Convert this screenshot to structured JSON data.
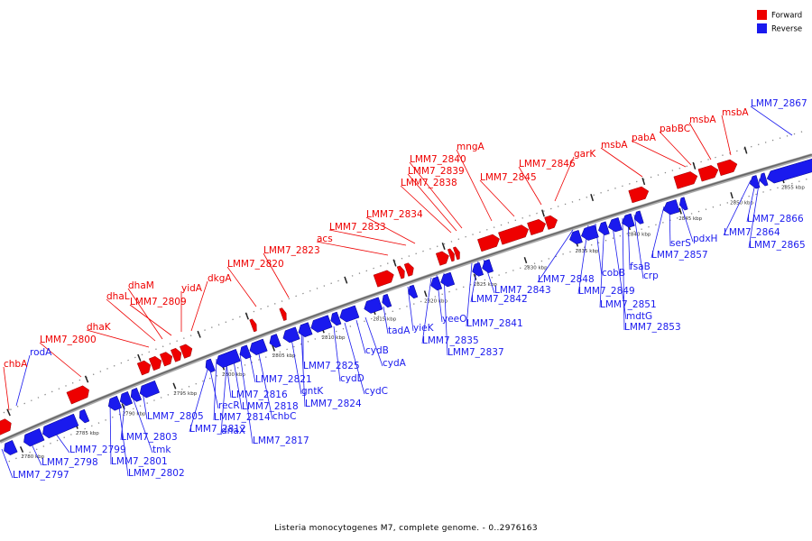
{
  "caption": "Listeria monocytogenes M7, complete genome. - 0..2976163",
  "legend": [
    {
      "label": "Forward",
      "color": "#ee0000"
    },
    {
      "label": "Reverse",
      "color": "#1a1aee"
    }
  ],
  "colors": {
    "forward": "#ee0000",
    "reverse": "#1a1aee",
    "backbone": "#666666"
  },
  "scale_ticks": [
    "2780 kbp",
    "2785 kbp",
    "2790 kbp",
    "2795 kbp",
    "2800 kbp",
    "2805 kbp",
    "2810 kbp",
    "2815 kbp",
    "2820 kbp",
    "2825 kbp",
    "2830 kbp",
    "2835 kbp",
    "2840 kbp",
    "2845 kbp",
    "2850 kbp",
    "2855 kbp"
  ],
  "forward_labels": [
    "chbA",
    "LMM7_2800",
    "dhaK",
    "dhaL",
    "dhaM",
    "LMM7_2809",
    "yidA",
    "dkgA",
    "LMM7_2820",
    "LMM7_2823",
    "acs",
    "LMM7_2833",
    "LMM7_2834",
    "LMM7_2838",
    "LMM7_2839",
    "LMM7_2840",
    "mngA",
    "LMM7_2845",
    "LMM7_2846",
    "garK",
    "msbA",
    "pabA",
    "pabBC",
    "msbA",
    "msbA"
  ],
  "reverse_labels": [
    "rodA",
    "LMM7_2797",
    "LMM7_2798",
    "LMM7_2799",
    "LMM7_2801",
    "LMM7_2802",
    "LMM7_2803",
    "tmk",
    "LMM7_2805",
    "LMM7_2812",
    "recR",
    "LMM7_2814",
    "dnaX",
    "LMM7_2816",
    "LMM7_2817",
    "LMM7_2818",
    "chbC",
    "LMM7_2821",
    "gntK",
    "LMM7_2824",
    "LMM7_2825",
    "cydD",
    "cydC",
    "cydB",
    "cydA",
    "tadA",
    "yieK",
    "LMM7_2835",
    "yeeO",
    "LMM7_2837",
    "LMM7_2841",
    "LMM7_2842",
    "LMM7_2843",
    "LMM7_2848",
    "LMM7_2849",
    "cobB",
    "LMM7_2851",
    "mdtG",
    "LMM7_2853",
    "fsaB",
    "crp",
    "LMM7_2857",
    "serS",
    "pdxH",
    "LMM7_2864",
    "LMM7_2865",
    "LMM7_2866",
    "LMM7_2867"
  ]
}
